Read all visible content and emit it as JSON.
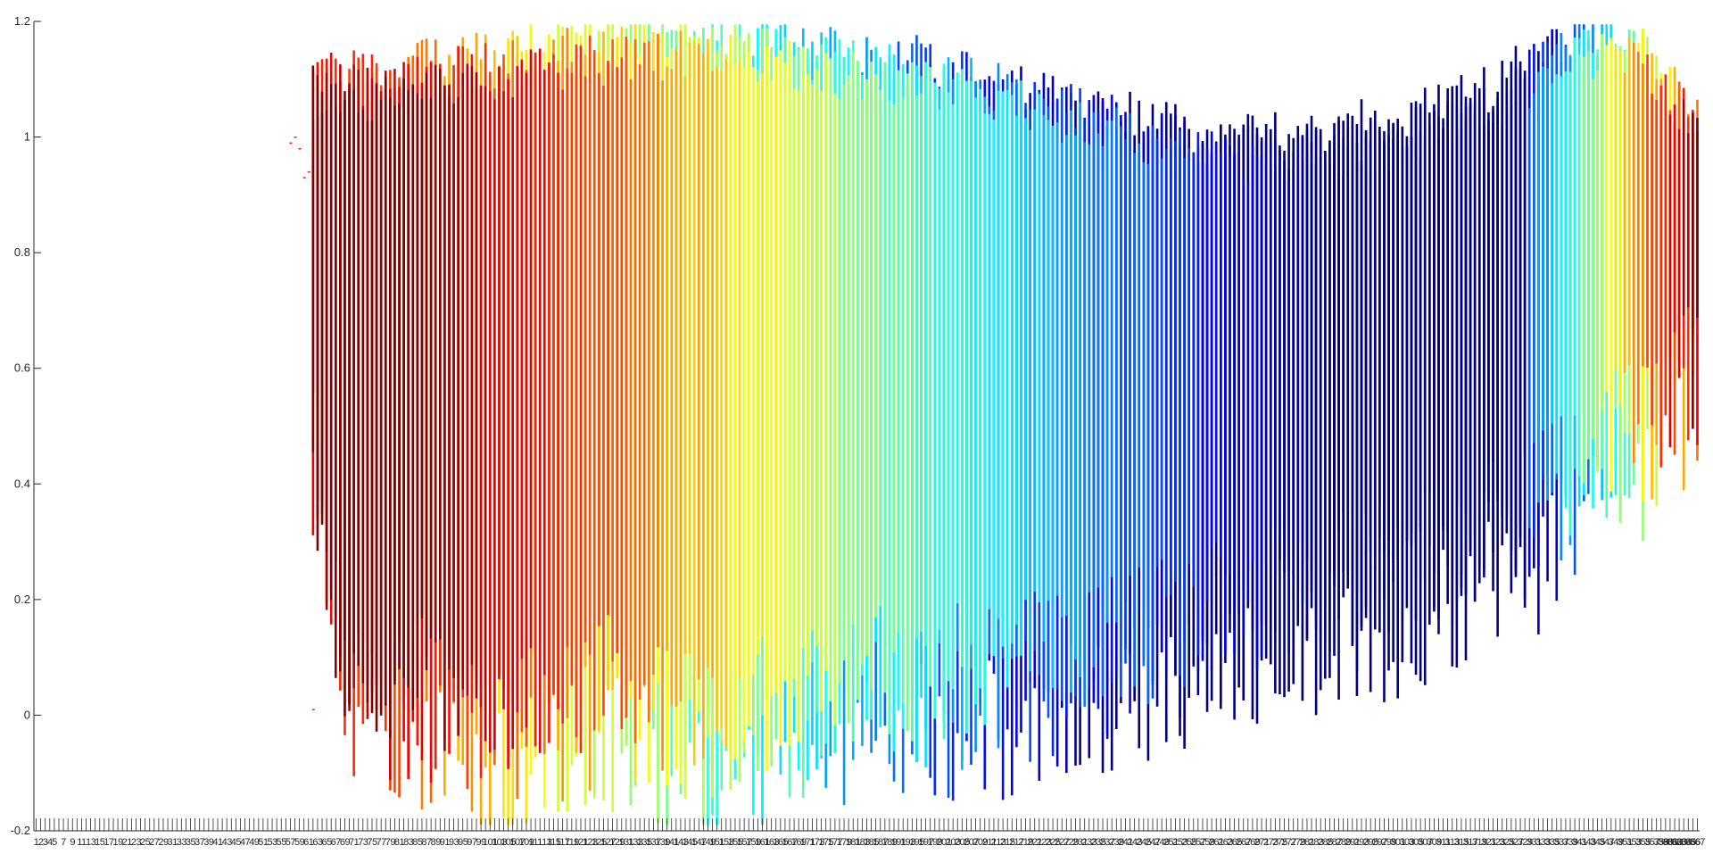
{
  "chart_data": {
    "type": "bar",
    "bar_style": "floating vertical range bars (each category drawn as multiple overlapping colored segments)",
    "title": "",
    "xlabel": "",
    "ylabel": "",
    "ylim": [
      -0.2,
      1.2
    ],
    "yticks": [
      -0.2,
      0,
      0.2,
      0.4,
      0.6,
      0.8,
      1,
      1.2
    ],
    "ytick_labels": [
      "-0.2",
      "0",
      "0.2",
      "0.4",
      "0.6",
      "0.8",
      "1",
      "1.2"
    ],
    "xtick_count": 367,
    "xtick_labels_visible_start": "1 2 3 4 5 7 9 11 ...",
    "xtick_labels_visible_end": "... 365 367",
    "grid": false,
    "legend": "none",
    "colormap": "jet",
    "colormap_stops": [
      "#000080",
      "#0000ff",
      "#0080ff",
      "#00ffff",
      "#80ff80",
      "#ffff00",
      "#ff8000",
      "#ff0000",
      "#800000"
    ],
    "axis_color": "#262626",
    "categories_with_data": "approx. 62 to 367",
    "upper_envelope": [
      [
        62,
        1.09
      ],
      [
        80,
        1.11
      ],
      [
        100,
        1.13
      ],
      [
        120,
        1.16
      ],
      [
        150,
        1.18
      ],
      [
        170,
        1.15
      ],
      [
        200,
        1.12
      ],
      [
        230,
        1.06
      ],
      [
        250,
        1.01
      ],
      [
        275,
        0.99
      ],
      [
        300,
        1.02
      ],
      [
        320,
        1.07
      ],
      [
        340,
        1.17
      ],
      [
        355,
        1.16
      ],
      [
        367,
        1.02
      ]
    ],
    "lower_envelope": [
      [
        62,
        0.31
      ],
      [
        70,
        -0.08
      ],
      [
        90,
        -0.1
      ],
      [
        110,
        -0.15
      ],
      [
        130,
        -0.09
      ],
      [
        150,
        -0.16
      ],
      [
        170,
        -0.12
      ],
      [
        190,
        -0.07
      ],
      [
        210,
        -0.08
      ],
      [
        240,
        -0.02
      ],
      [
        270,
        0.05
      ],
      [
        300,
        0.1
      ],
      [
        330,
        0.2
      ],
      [
        350,
        0.34
      ],
      [
        367,
        0.45
      ]
    ]
  }
}
